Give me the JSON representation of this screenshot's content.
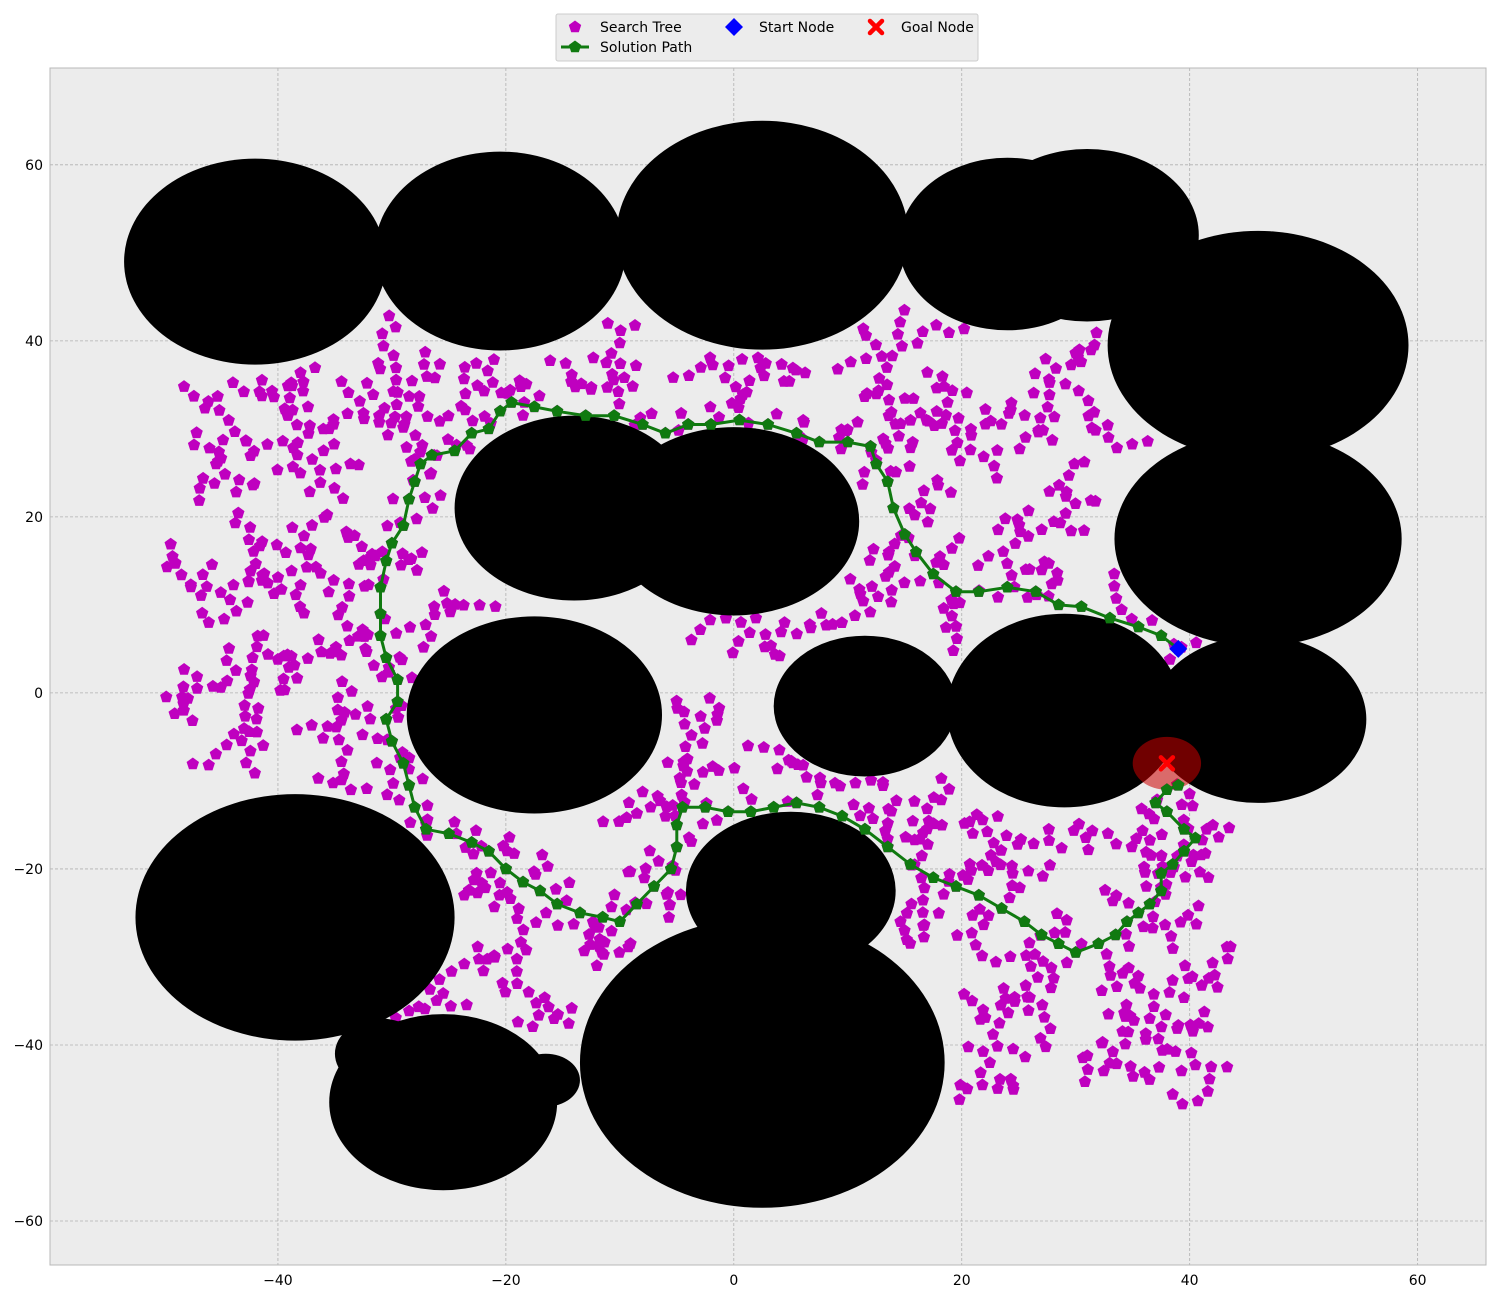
{
  "chart_data": {
    "type": "scatter",
    "title": "",
    "xlabel": "",
    "ylabel": "",
    "xlim": [
      -60,
      66
    ],
    "ylim": [
      -65,
      71
    ],
    "xticks": [
      -40,
      -20,
      0,
      20,
      40,
      60
    ],
    "yticks": [
      -60,
      -40,
      -20,
      0,
      20,
      40,
      60
    ],
    "grid": true,
    "legend_placement": "top-center",
    "colors": {
      "background": "#ececec",
      "grid": "#b0b0b0",
      "obstacle": "#000000",
      "tree": "#bf00bf",
      "path": "#107a10",
      "start": "#0000ff",
      "goal": "#ff0000",
      "goal_region": "#cc0000"
    },
    "legend": [
      {
        "label": "Search Tree",
        "marker": "pentagon",
        "color": "#bf00bf"
      },
      {
        "label": "Solution Path",
        "marker": "line-pentagon",
        "color": "#107a10"
      },
      {
        "label": "Start Node",
        "marker": "diamond",
        "color": "#0000ff"
      },
      {
        "label": "Goal Node",
        "marker": "x",
        "color": "#ff0000"
      }
    ],
    "obstacles": [
      {
        "cx": -42,
        "cy": 49,
        "rx": 11.5,
        "ry": 11.7
      },
      {
        "cx": -20.5,
        "cy": 50.2,
        "rx": 11,
        "ry": 11.3
      },
      {
        "cx": 2.5,
        "cy": 52,
        "rx": 12.8,
        "ry": 13
      },
      {
        "cx": 24,
        "cy": 51,
        "rx": 9.5,
        "ry": 9.8
      },
      {
        "cx": 31,
        "cy": 52,
        "rx": 9.8,
        "ry": 9.8
      },
      {
        "cx": 46,
        "cy": 39.5,
        "rx": 13.2,
        "ry": 13
      },
      {
        "cx": 46,
        "cy": 17.5,
        "rx": 12.6,
        "ry": 12.2
      },
      {
        "cx": -14,
        "cy": 21,
        "rx": 10.5,
        "ry": 10.5
      },
      {
        "cx": 0,
        "cy": 19.5,
        "rx": 11,
        "ry": 10.7
      },
      {
        "cx": -17.5,
        "cy": -2.5,
        "rx": 11.2,
        "ry": 11.2
      },
      {
        "cx": 11.5,
        "cy": -1.5,
        "rx": 8,
        "ry": 8
      },
      {
        "cx": 29,
        "cy": -2,
        "rx": 10.3,
        "ry": 11
      },
      {
        "cx": 46,
        "cy": -3,
        "rx": 9.5,
        "ry": 9.5
      },
      {
        "cx": -38.5,
        "cy": -25.5,
        "rx": 14,
        "ry": 14
      },
      {
        "cx": 5,
        "cy": -22.5,
        "rx": 9.2,
        "ry": 9
      },
      {
        "cx": 2.5,
        "cy": -42,
        "rx": 16,
        "ry": 16.5
      },
      {
        "cx": -25.5,
        "cy": -46.5,
        "rx": 10,
        "ry": 10
      },
      {
        "cx": -31,
        "cy": -41,
        "rx": 4,
        "ry": 4
      },
      {
        "cx": -16.5,
        "cy": -44,
        "rx": 3,
        "ry": 3
      }
    ],
    "solution_path": [
      [
        39,
        5
      ],
      [
        37.5,
        6.5
      ],
      [
        35.5,
        7.5
      ],
      [
        33,
        8.5
      ],
      [
        30.5,
        9.8
      ],
      [
        28.5,
        10
      ],
      [
        26.5,
        11.5
      ],
      [
        24,
        12
      ],
      [
        21.5,
        11.5
      ],
      [
        19.5,
        11.5
      ],
      [
        17.5,
        13.5
      ],
      [
        16,
        16
      ],
      [
        15,
        18
      ],
      [
        14,
        21
      ],
      [
        13.5,
        24
      ],
      [
        12.5,
        26
      ],
      [
        12,
        28
      ],
      [
        10,
        28.5
      ],
      [
        7.5,
        28.5
      ],
      [
        5.5,
        29.5
      ],
      [
        3,
        30.5
      ],
      [
        0.5,
        31
      ],
      [
        -2,
        30.5
      ],
      [
        -4,
        30.5
      ],
      [
        -6,
        29.5
      ],
      [
        -8,
        30.5
      ],
      [
        -10.5,
        31.5
      ],
      [
        -13,
        31.5
      ],
      [
        -15.5,
        32
      ],
      [
        -17.5,
        32.5
      ],
      [
        -19.5,
        33
      ],
      [
        -20.5,
        32
      ],
      [
        -21.5,
        30
      ],
      [
        -23,
        29.5
      ],
      [
        -24.5,
        27.5
      ],
      [
        -26.5,
        27
      ],
      [
        -27.5,
        26
      ],
      [
        -28,
        24
      ],
      [
        -28.5,
        22
      ],
      [
        -29,
        19
      ],
      [
        -30,
        17
      ],
      [
        -30.5,
        15
      ],
      [
        -31,
        12
      ],
      [
        -31,
        9
      ],
      [
        -31,
        6.5
      ],
      [
        -30.5,
        4
      ],
      [
        -29.5,
        1.5
      ],
      [
        -29.5,
        -1
      ],
      [
        -30.5,
        -3
      ],
      [
        -30,
        -5.5
      ],
      [
        -29,
        -8
      ],
      [
        -28.5,
        -10.5
      ],
      [
        -28,
        -13
      ],
      [
        -27,
        -15.5
      ],
      [
        -25,
        -16
      ],
      [
        -23,
        -17
      ],
      [
        -21.5,
        -18
      ],
      [
        -20,
        -20
      ],
      [
        -18.5,
        -21.5
      ],
      [
        -17,
        -22.5
      ],
      [
        -15.5,
        -24
      ],
      [
        -13.5,
        -25
      ],
      [
        -11.5,
        -25.5
      ],
      [
        -10,
        -26
      ],
      [
        -8.5,
        -24
      ],
      [
        -7,
        -22
      ],
      [
        -5.5,
        -20
      ],
      [
        -5,
        -17.5
      ],
      [
        -5,
        -15
      ],
      [
        -4.5,
        -13
      ],
      [
        -2.5,
        -13
      ],
      [
        -0.5,
        -13.5
      ],
      [
        1.5,
        -13.5
      ],
      [
        3.5,
        -13
      ],
      [
        5.5,
        -12.5
      ],
      [
        7.5,
        -13
      ],
      [
        9.5,
        -14
      ],
      [
        11.5,
        -15.5
      ],
      [
        13.5,
        -17.5
      ],
      [
        15.5,
        -19.5
      ],
      [
        17.5,
        -21
      ],
      [
        19.5,
        -22
      ],
      [
        21.5,
        -23
      ],
      [
        23.5,
        -24.5
      ],
      [
        25.5,
        -26
      ],
      [
        27,
        -27.5
      ],
      [
        28.5,
        -28.5
      ],
      [
        30,
        -29.5
      ],
      [
        32,
        -28.5
      ],
      [
        33.5,
        -27.5
      ],
      [
        34.5,
        -26
      ],
      [
        35.5,
        -25
      ],
      [
        36.5,
        -24
      ],
      [
        37.5,
        -22.5
      ],
      [
        37.5,
        -20.5
      ],
      [
        38.5,
        -19.5
      ],
      [
        39.5,
        -18
      ],
      [
        40.5,
        -16.5
      ],
      [
        39.5,
        -15.5
      ],
      [
        38,
        -13.5
      ],
      [
        37,
        -12.5
      ],
      [
        38,
        -11
      ],
      [
        39,
        -10.5
      ]
    ],
    "start": {
      "x": 39,
      "y": 5
    },
    "goal": {
      "x": 38,
      "y": -8,
      "radius": 3
    }
  }
}
